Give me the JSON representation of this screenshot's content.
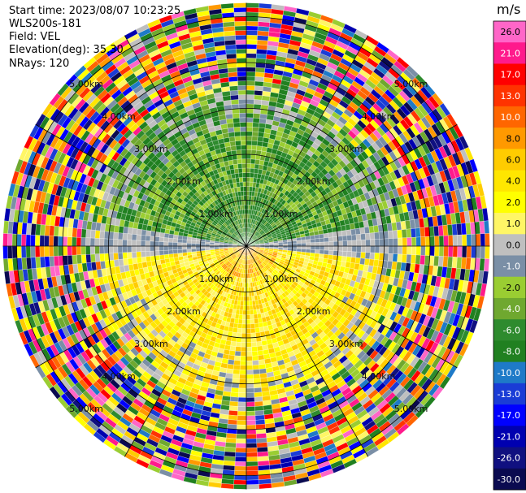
{
  "header": {
    "start_time": "Start time: 2023/08/07 10:23:25",
    "instrument": "WLS200s-181",
    "field": "Field: VEL",
    "elevation": "Elevation(deg): 35.30",
    "nrays": "NRays: 120"
  },
  "chart_data": {
    "type": "ppi",
    "field": "VEL",
    "units": "m/s",
    "n_rays": 120,
    "elevation_deg": 35.3,
    "range_ring_labels": [
      "1.00km",
      "2.00km",
      "3.00km",
      "4.00km",
      "5.00km"
    ],
    "range_rings_km": [
      1,
      2,
      3,
      4,
      5
    ],
    "max_range_km": 5.3,
    "spoke_angles_deg": [
      0,
      30,
      60,
      90,
      120,
      150,
      180,
      210,
      240,
      270,
      300,
      330
    ],
    "colorbar": {
      "title": "m/s",
      "ticks": [
        26.0,
        21.0,
        17.0,
        13.0,
        10.0,
        8.0,
        6.0,
        4.0,
        2.0,
        1.0,
        0.0,
        -1.0,
        -2.0,
        -4.0,
        -6.0,
        -8.0,
        -10.0,
        -13.0,
        -17.0,
        -21.0,
        -26.0,
        -30.0
      ],
      "tick_labels": [
        "26.0",
        "21.0",
        "17.0",
        "13.0",
        "10.0",
        "8.0",
        "6.0",
        "4.0",
        "2.0",
        "1.0",
        "0.0",
        "-1.0",
        "-2.0",
        "-4.0",
        "-6.0",
        "-8.0",
        "-10.0",
        "-13.0",
        "-17.0",
        "-21.0",
        "-26.0",
        "-30.0"
      ],
      "colors": [
        "#ff66c8",
        "#ff1a8c",
        "#ff0000",
        "#ff3300",
        "#ff6600",
        "#ff9900",
        "#ffcc00",
        "#ffe600",
        "#ffff00",
        "#fff666",
        "#bfbfbf",
        "#7a8fa6",
        "#9acd32",
        "#6fa82f",
        "#2e8b2e",
        "#208020",
        "#1e7ac8",
        "#1a3cd6",
        "#0000ff",
        "#0000b0",
        "#101080",
        "#0a0a50"
      ]
    },
    "pattern": {
      "near_north_half": "negative (green/olive, -1 to -6 m/s)",
      "near_south_half": "positive (yellow, 1 to 4 m/s)",
      "far_ranges": "noise, all colors"
    }
  },
  "colors": {
    "background": "#ffffff",
    "grid": "#000000"
  }
}
